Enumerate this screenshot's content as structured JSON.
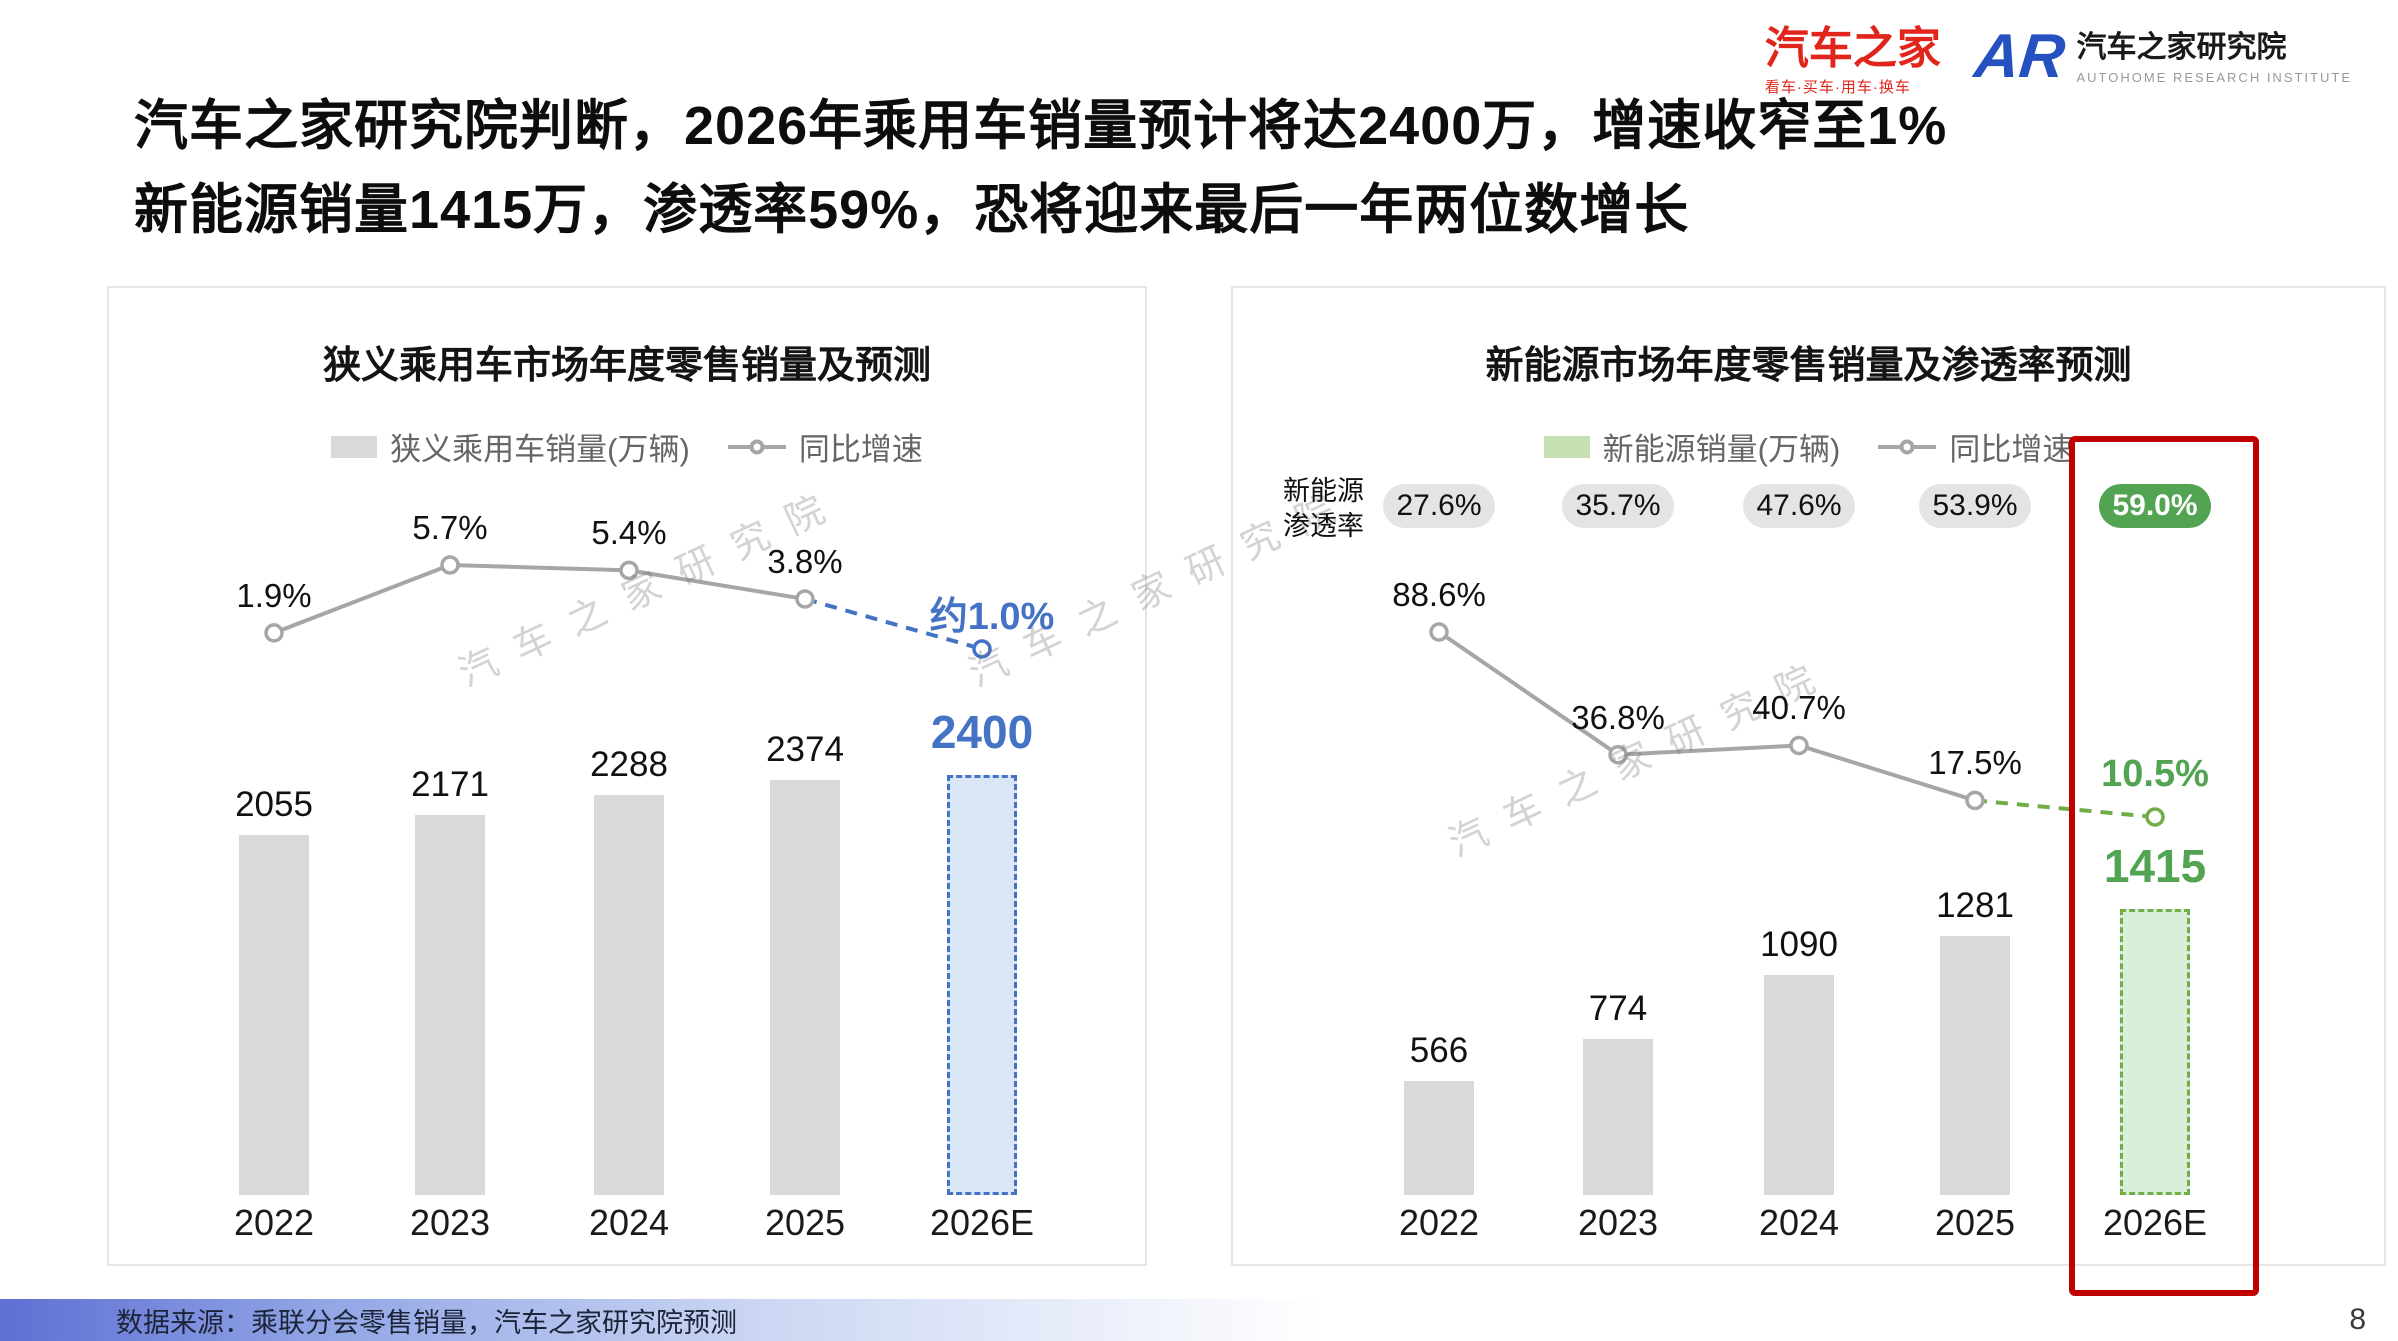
{
  "colors": {
    "accent_blue": "#4472c4",
    "accent_green": "#70ad47",
    "badge_green": "#52a352",
    "highlight_red": "#c00000",
    "bar_gray": "#d9d9d9",
    "line_gray": "#a6a6a6",
    "forecast_blue_fill": "#dae6f5",
    "forecast_green_fill": "#d9efd9",
    "legend_green_swatch": "#c6e0b4"
  },
  "header": {
    "title_line1": "汽车之家研究院判断，2026年乘用车销量预计将达2400万，增速收窄至1%",
    "title_line2": "新能源销量1415万，渗透率59%，恐将迎来最后一年两位数增长",
    "autohome_logo": {
      "text": "汽车之家",
      "subtext": "看车·买车·用车·换车"
    },
    "research_logo": {
      "mark": "AR",
      "text": "汽车之家研究院",
      "subtext": "AUTOHOME RESEARCH INSTITUTE"
    }
  },
  "watermark": "汽车之家研究院",
  "footer": {
    "source": "数据来源：乘联分会零售销量，汽车之家研究院预测",
    "page_number": "8"
  },
  "chart_data": [
    {
      "type": "bar+line",
      "title": "狭义乘用车市场年度零售销量及预测",
      "legend": [
        "狭义乘用车销量(万辆)",
        "同比增速"
      ],
      "categories": [
        "2022",
        "2023",
        "2024",
        "2025",
        "2026E"
      ],
      "bar_series_name": "狭义乘用车销量(万辆)",
      "bars": [
        2055,
        2171,
        2288,
        2374,
        2400
      ],
      "bar_labels": [
        "2055",
        "2171",
        "2288",
        "2374",
        "2400"
      ],
      "line_series_name": "同比增速",
      "line": [
        1.9,
        5.7,
        5.4,
        3.8,
        1.0
      ],
      "line_labels": [
        "1.9%",
        "5.7%",
        "5.4%",
        "3.8%",
        "约1.0%"
      ],
      "forecast_index": 4,
      "units": "万辆",
      "legend_position": "top",
      "grid": false
    },
    {
      "type": "bar+line",
      "title": "新能源市场年度零售销量及渗透率预测",
      "legend": [
        "新能源销量(万辆)",
        "同比增速"
      ],
      "categories": [
        "2022",
        "2023",
        "2024",
        "2025",
        "2026E"
      ],
      "penetration_label": "新能源渗透率",
      "penetration_label_lines": [
        "新能源",
        "渗透率"
      ],
      "penetration": [
        "27.6%",
        "35.7%",
        "47.6%",
        "53.9%",
        "59.0%"
      ],
      "bar_series_name": "新能源销量(万辆)",
      "bars": [
        566,
        774,
        1090,
        1281,
        1415
      ],
      "bar_labels": [
        "566",
        "774",
        "1090",
        "1281",
        "1415"
      ],
      "line_series_name": "同比增速",
      "line": [
        88.6,
        36.8,
        40.7,
        17.5,
        10.5
      ],
      "line_labels": [
        "88.6%",
        "36.8%",
        "40.7%",
        "17.5%",
        "10.5%"
      ],
      "forecast_index": 4,
      "highlight_forecast": true,
      "units": "万辆",
      "legend_position": "top",
      "grid": false
    }
  ]
}
